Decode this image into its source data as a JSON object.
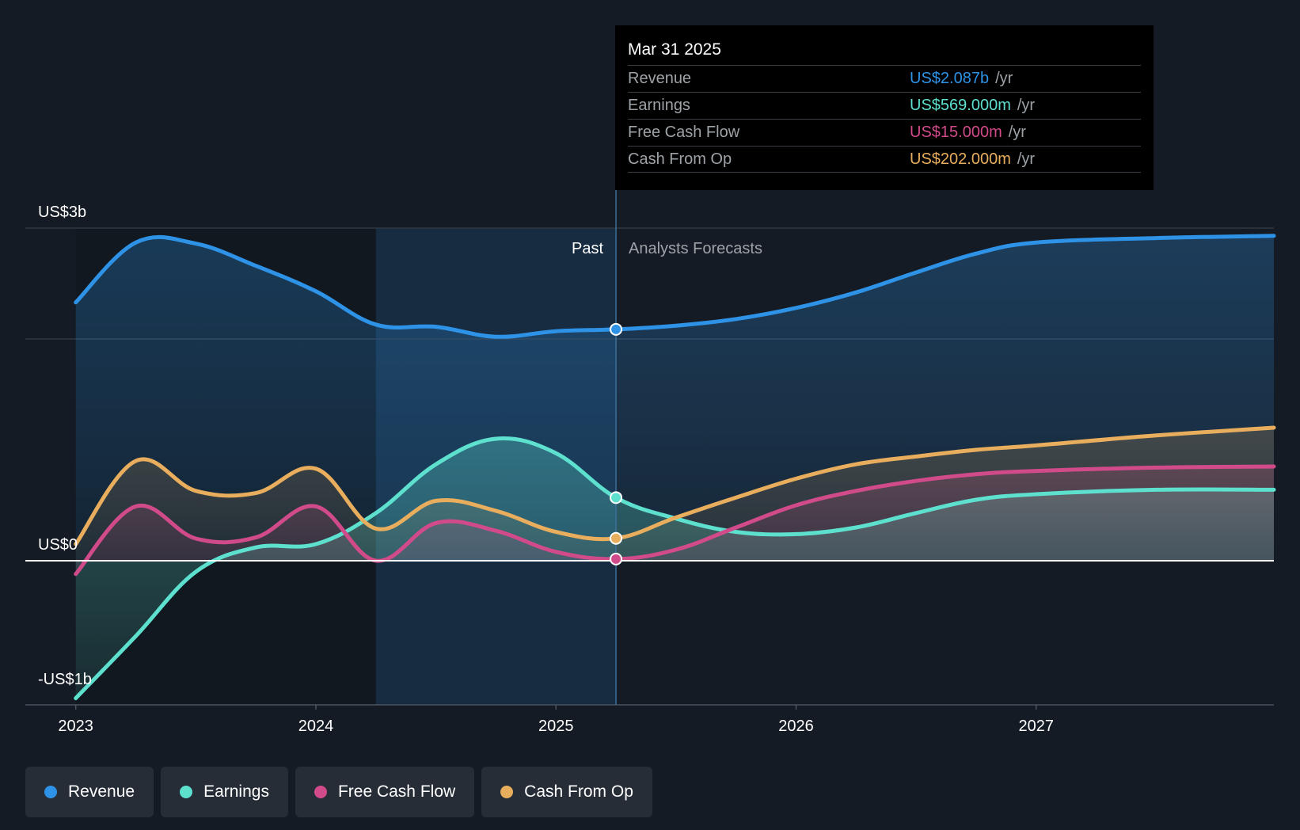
{
  "colors": {
    "revenue": "#2e93e6",
    "earnings": "#5ee0cf",
    "fcf": "#d14b8a",
    "cfo": "#e8ae5d"
  },
  "tooltip": {
    "date": "Mar 31 2025",
    "rows": [
      {
        "label": "Revenue",
        "value": "US$2.087b",
        "unit": "/yr"
      },
      {
        "label": "Earnings",
        "value": "US$569.000m",
        "unit": "/yr"
      },
      {
        "label": "Free Cash Flow",
        "value": "US$15.000m",
        "unit": "/yr"
      },
      {
        "label": "Cash From Op",
        "value": "US$202.000m",
        "unit": "/yr"
      }
    ]
  },
  "legend": {
    "items": [
      {
        "label": "Revenue",
        "icon": "revenue-dot-icon"
      },
      {
        "label": "Earnings",
        "icon": "earnings-dot-icon"
      },
      {
        "label": "Free Cash Flow",
        "icon": "fcf-dot-icon"
      },
      {
        "label": "Cash From Op",
        "icon": "cfo-dot-icon"
      }
    ]
  },
  "chart_data": {
    "type": "line",
    "title": "",
    "xlabel": "",
    "ylabel": "",
    "ylim": [
      -1.3,
      3
    ],
    "y_ticks": [
      {
        "value": 3,
        "label": "US$3b"
      },
      {
        "value": 0,
        "label": "US$0"
      },
      {
        "value": -1.3,
        "label": "-US$1b"
      }
    ],
    "x_ticks": [
      {
        "value": 2023,
        "label": "2023"
      },
      {
        "value": 2024,
        "label": "2024"
      },
      {
        "value": 2025,
        "label": "2025"
      },
      {
        "value": 2026,
        "label": "2026"
      },
      {
        "value": 2027,
        "label": "2027"
      }
    ],
    "xlim": [
      2022.79,
      2027.99
    ],
    "past_label": "Past",
    "forecast_label": "Analysts Forecasts",
    "past_start": 2024.25,
    "divider": 2025.25,
    "grid": true,
    "series": [
      {
        "name": "Revenue",
        "key": "revenue",
        "points": [
          [
            2023.0,
            2.33
          ],
          [
            2023.25,
            2.87
          ],
          [
            2023.5,
            2.86
          ],
          [
            2023.75,
            2.66
          ],
          [
            2024.0,
            2.43
          ],
          [
            2024.25,
            2.13
          ],
          [
            2024.5,
            2.11
          ],
          [
            2024.75,
            2.02
          ],
          [
            2025.0,
            2.07
          ],
          [
            2025.25,
            2.087
          ],
          [
            2025.5,
            2.12
          ],
          [
            2025.75,
            2.18
          ],
          [
            2026.0,
            2.28
          ],
          [
            2026.25,
            2.42
          ],
          [
            2026.5,
            2.6
          ],
          [
            2026.75,
            2.77
          ],
          [
            2027.0,
            2.87
          ],
          [
            2027.5,
            2.91
          ],
          [
            2027.99,
            2.93
          ]
        ]
      },
      {
        "name": "Earnings",
        "key": "earnings",
        "points": [
          [
            2023.0,
            -1.24
          ],
          [
            2023.25,
            -0.68
          ],
          [
            2023.5,
            -0.1
          ],
          [
            2023.75,
            0.12
          ],
          [
            2024.0,
            0.15
          ],
          [
            2024.25,
            0.43
          ],
          [
            2024.5,
            0.87
          ],
          [
            2024.75,
            1.1
          ],
          [
            2025.0,
            0.97
          ],
          [
            2025.25,
            0.569
          ],
          [
            2025.5,
            0.38
          ],
          [
            2025.75,
            0.26
          ],
          [
            2026.0,
            0.24
          ],
          [
            2026.25,
            0.3
          ],
          [
            2026.5,
            0.43
          ],
          [
            2026.75,
            0.55
          ],
          [
            2027.0,
            0.6
          ],
          [
            2027.5,
            0.64
          ],
          [
            2027.99,
            0.64
          ]
        ]
      },
      {
        "name": "Free Cash Flow",
        "key": "fcf",
        "points": [
          [
            2023.0,
            -0.12
          ],
          [
            2023.25,
            0.49
          ],
          [
            2023.5,
            0.2
          ],
          [
            2023.75,
            0.21
          ],
          [
            2024.0,
            0.49
          ],
          [
            2024.25,
            0.0
          ],
          [
            2024.5,
            0.34
          ],
          [
            2024.75,
            0.27
          ],
          [
            2025.0,
            0.08
          ],
          [
            2025.25,
            0.015
          ],
          [
            2025.5,
            0.1
          ],
          [
            2025.75,
            0.3
          ],
          [
            2026.0,
            0.5
          ],
          [
            2026.25,
            0.63
          ],
          [
            2026.5,
            0.72
          ],
          [
            2026.75,
            0.78
          ],
          [
            2027.0,
            0.81
          ],
          [
            2027.5,
            0.84
          ],
          [
            2027.99,
            0.85
          ]
        ]
      },
      {
        "name": "Cash From Op",
        "key": "cfo",
        "points": [
          [
            2023.0,
            0.15
          ],
          [
            2023.25,
            0.9
          ],
          [
            2023.5,
            0.63
          ],
          [
            2023.75,
            0.61
          ],
          [
            2024.0,
            0.83
          ],
          [
            2024.25,
            0.29
          ],
          [
            2024.5,
            0.54
          ],
          [
            2024.75,
            0.45
          ],
          [
            2025.0,
            0.26
          ],
          [
            2025.25,
            0.202
          ],
          [
            2025.5,
            0.39
          ],
          [
            2025.75,
            0.57
          ],
          [
            2026.0,
            0.74
          ],
          [
            2026.25,
            0.87
          ],
          [
            2026.5,
            0.94
          ],
          [
            2026.75,
            1.0
          ],
          [
            2027.0,
            1.04
          ],
          [
            2027.5,
            1.13
          ],
          [
            2027.99,
            1.2
          ]
        ]
      }
    ]
  }
}
